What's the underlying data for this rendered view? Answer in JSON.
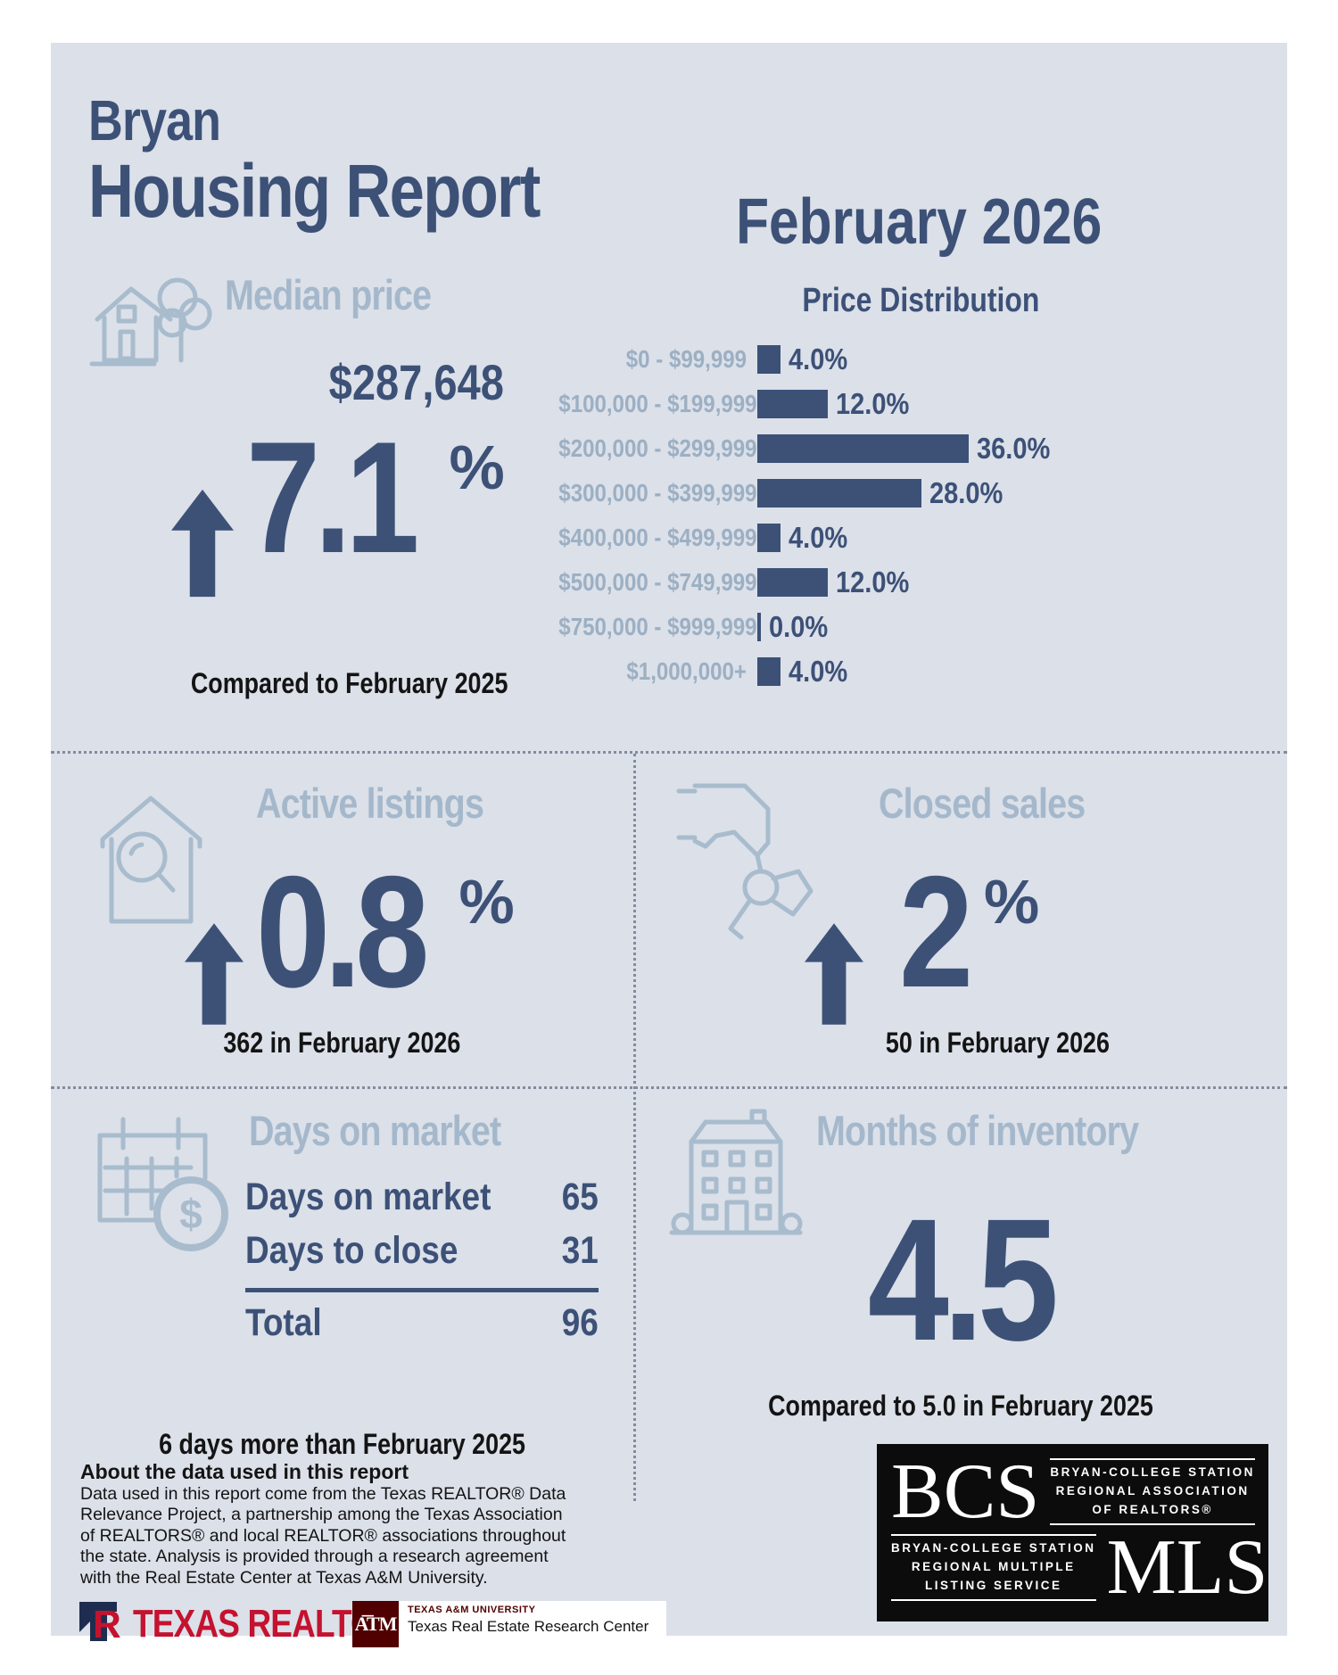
{
  "report": {
    "city": "Bryan",
    "title": "Housing Report",
    "period": "February 2026"
  },
  "median_price": {
    "heading": "Median price",
    "value": "$287,648",
    "change_value": "7.1",
    "change_unit": "%",
    "direction": "up",
    "compare_note": "Compared to February 2025"
  },
  "chart_data": {
    "type": "bar",
    "orientation": "horizontal",
    "title": "Price Distribution",
    "categories": [
      "$0 - $99,999",
      "$100,000 - $199,999",
      "$200,000 - $299,999",
      "$300,000 - $399,999",
      "$400,000 - $499,999",
      "$500,000 - $749,999",
      "$750,000 - $999,999",
      "$1,000,000+"
    ],
    "values": [
      4.0,
      12.0,
      36.0,
      28.0,
      4.0,
      12.0,
      0.0,
      4.0
    ],
    "value_labels": [
      "4.0%",
      "12.0%",
      "36.0%",
      "28.0%",
      "4.0%",
      "12.0%",
      "0.0%",
      "4.0%"
    ],
    "xlim": [
      0,
      36
    ],
    "grid": false,
    "legend": false,
    "bar_color": "#3d5177",
    "category_label_color": "#9cafc3"
  },
  "active_listings": {
    "heading": "Active listings",
    "change_value": "0.8",
    "change_unit": "%",
    "direction": "up",
    "compare_note": "362 in February 2026"
  },
  "closed_sales": {
    "heading": "Closed sales",
    "change_value": "2",
    "change_unit": "%",
    "direction": "up",
    "compare_note": "50 in February 2026"
  },
  "days_on_market": {
    "heading": "Days on market",
    "rows": [
      {
        "label": "Days on market",
        "value": "65"
      },
      {
        "label": "Days to close",
        "value": "31"
      }
    ],
    "total": {
      "label": "Total",
      "value": "96"
    },
    "compare_note": "6 days more than February 2025"
  },
  "months_of_inventory": {
    "heading": "Months of inventory",
    "value": "4.5",
    "compare_note": "Compared to 5.0 in February 2025"
  },
  "about": {
    "heading": "About the data used in this report",
    "body": "Data used in this report come from the Texas REALTOR® Data Relevance Project, a partnership among the Texas Association of REALTORS® and local REALTOR® associations throughout the state. Analysis is provided through a research agreement with the Real Estate Center at Texas A&M University."
  },
  "logos": {
    "texas_realtors": {
      "name": "TEXAS REALTORS",
      "reg": "®"
    },
    "tamu": {
      "monogram": "A͞TM",
      "university": "TEXAS A&M UNIVERSITY",
      "center": "Texas Real Estate Research Center"
    },
    "bcs_mls": {
      "bcs": "BCS",
      "association_lines": [
        "BRYAN-COLLEGE STATION",
        "REGIONAL ASSOCIATION",
        "OF REALTORS®"
      ],
      "mls": "MLS",
      "mls_lines": [
        "BRYAN-COLLEGE STATION",
        "REGIONAL MULTIPLE",
        "LISTING SERVICE"
      ]
    }
  },
  "colors": {
    "panel_bg": "#dbe0e9",
    "navy": "#3d5177",
    "light_blue": "#a5b8cb",
    "text_black": "#141414",
    "realtor_red": "#c4122f",
    "aggie_maroon": "#500000",
    "mls_black": "#0c0c0c"
  }
}
